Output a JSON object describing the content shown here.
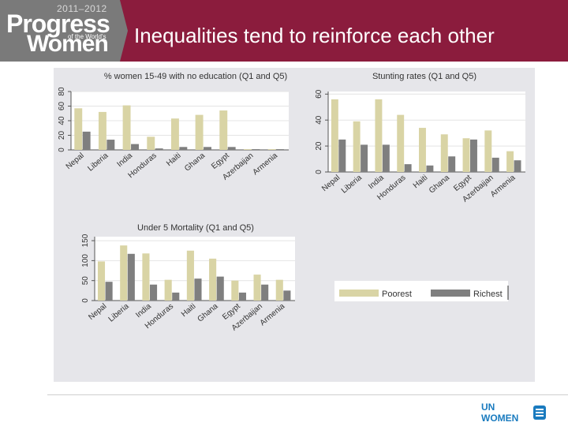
{
  "header": {
    "title": "Inequalities tend to reinforce each other",
    "logo_years": "2011–2012",
    "logo_progress": "Progress",
    "logo_ofthe": "of the World's",
    "logo_women": "Women"
  },
  "colors": {
    "header_bg": "#8b1c3d",
    "logo_bg": "#7a7a7a",
    "poorest": "#d9d4a5",
    "richest": "#7f7f7f",
    "un_blue": "#1a7bbf"
  },
  "legend": {
    "poorest": "Poorest",
    "richest": "Richest"
  },
  "footer": {
    "un_logo": "UN WOMEN"
  },
  "chart_data": [
    {
      "type": "bar",
      "title": "% women 15-49 with no education (Q1 and Q5)",
      "categories": [
        "Nepal",
        "Liberia",
        "India",
        "Honduras",
        "Haiti",
        "Ghana",
        "Egypt",
        "Azerbaijan",
        "Armenia"
      ],
      "series": [
        {
          "name": "Poorest",
          "values": [
            57,
            52,
            61,
            18,
            43,
            48,
            54,
            1,
            1
          ]
        },
        {
          "name": "Richest",
          "values": [
            25,
            14,
            8,
            2,
            4,
            4,
            4,
            1,
            1
          ]
        }
      ],
      "yticks": [
        "0",
        "20",
        "40",
        "60",
        "80"
      ],
      "ylim": [
        0,
        80
      ]
    },
    {
      "type": "bar",
      "title": "Stunting rates (Q1 and Q5)",
      "categories": [
        "Nepal",
        "Liberia",
        "India",
        "Honduras",
        "Haiti",
        "Ghana",
        "Egypt",
        "Azerbaijan",
        "Armenia"
      ],
      "series": [
        {
          "name": "Poorest",
          "values": [
            56,
            39,
            56,
            44,
            34,
            29,
            26,
            32,
            16
          ]
        },
        {
          "name": "Richest",
          "values": [
            25,
            21,
            21,
            6,
            5,
            12,
            25,
            11,
            9
          ]
        }
      ],
      "yticks": [
        "0",
        "20",
        "40",
        "60"
      ],
      "ylim": [
        0,
        62
      ]
    },
    {
      "type": "bar",
      "title": "Under 5 Mortality (Q1 and Q5)",
      "categories": [
        "Nepal",
        "Liberia",
        "India",
        "Honduras",
        "Haiti",
        "Ghana",
        "Egypt",
        "Azerbaijan",
        "Armenia"
      ],
      "series": [
        {
          "name": "Poorest",
          "values": [
            98,
            138,
            118,
            52,
            125,
            105,
            50,
            65,
            52
          ]
        },
        {
          "name": "Richest",
          "values": [
            47,
            117,
            40,
            20,
            55,
            60,
            20,
            40,
            25
          ]
        }
      ],
      "yticks": [
        "0",
        "50",
        "100",
        "150"
      ],
      "ylim": [
        0,
        160
      ]
    }
  ]
}
